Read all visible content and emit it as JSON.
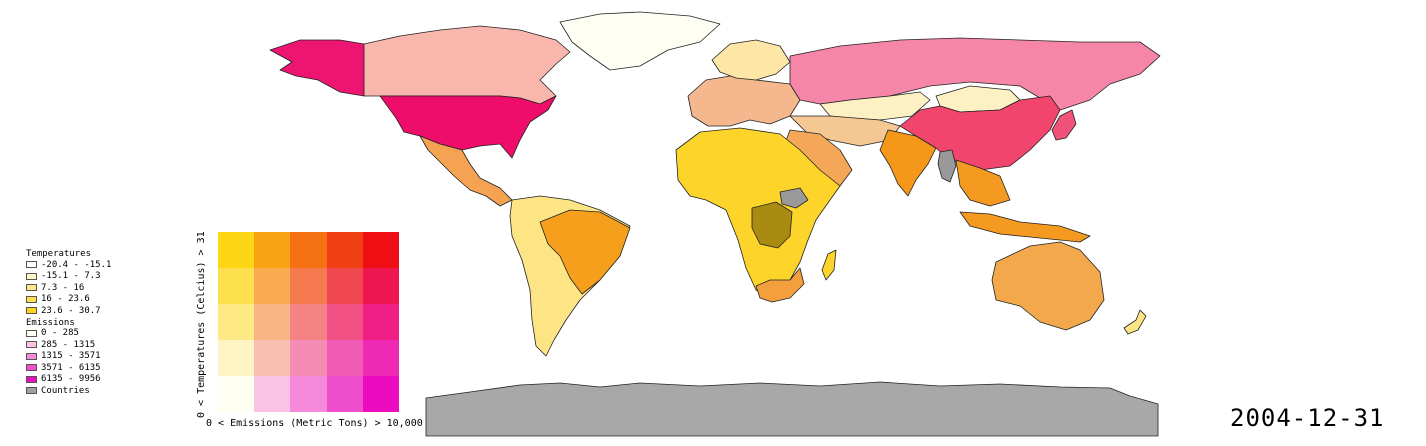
{
  "colors": {
    "greenland": "#fffef2",
    "canada": "#f8b6ad",
    "usa": "#ee0d6a",
    "alaska": "#ee1472",
    "russia": "#f686a8",
    "china": "#f1456d",
    "kazakh": "#fdf1c4",
    "mongolia": "#fdf1c4",
    "mexico": "#f5a352",
    "south_america": "#fde585",
    "brazil": "#f59f1c",
    "africa": "#fdd52a",
    "congo": "#a88b10",
    "south_sudan": "#9a9a9a",
    "south_africa": "#f49f3e",
    "europe": "#f5b88e",
    "scandinavia": "#fde6a6",
    "middle_east": "#f4a857",
    "india": "#f5981a",
    "se_asia": "#f59a20",
    "myanmar": "#999999",
    "japan": "#f0527a",
    "australia": "#f4a84c",
    "nz": "#fde585",
    "antarctica": "#a8a8a8",
    "madagascar": "#fdd52a",
    "central_asia": "#f5c792"
  },
  "legend": {
    "temp_title": "Temperatures",
    "temp_items": [
      {
        "label": "-20.4 - -15.1",
        "color": "#fffff2"
      },
      {
        "label": "-15.1 - 7.3",
        "color": "#fff4c4"
      },
      {
        "label": "7.3 - 16",
        "color": "#ffe887"
      },
      {
        "label": "16 - 23.6",
        "color": "#ffdd4f"
      },
      {
        "label": "23.6 - 30.7",
        "color": "#ffd21c"
      }
    ],
    "em_title": "Emissions",
    "em_items": [
      {
        "label": "0 - 285",
        "color": "#fffff2"
      },
      {
        "label": "285 - 1315",
        "color": "#fac2e4"
      },
      {
        "label": "1315 - 3571",
        "color": "#f48ad9"
      },
      {
        "label": "3571 - 6135",
        "color": "#ef4fcc"
      },
      {
        "label": "6135 - 9956",
        "color": "#eb0cbf"
      }
    ],
    "countries_label": "Countries",
    "countries_color": "#a0a0a0"
  },
  "bivariate": {
    "grid": [
      [
        "#fed616",
        "#f9a214",
        "#f57114",
        "#f13f14",
        "#ee0e14"
      ],
      [
        "#fee04f",
        "#f9ab4f",
        "#f57a4f",
        "#f1484f",
        "#ee164f"
      ],
      [
        "#fee985",
        "#f9b585",
        "#f58385",
        "#f15185",
        "#ee1f85"
      ],
      [
        "#fef4c4",
        "#f9bfb3",
        "#f58cb3",
        "#f15bb3",
        "#ee29b3"
      ],
      [
        "#fffff2",
        "#fac2e4",
        "#f48ad9",
        "#ef4fcc",
        "#eb0cbf"
      ]
    ],
    "y_label": "0 < Temperatures (Celcius) > 31",
    "x_label": "0 < Emissions (Metric Tons) > 10,000"
  },
  "date": "2004-12-31"
}
